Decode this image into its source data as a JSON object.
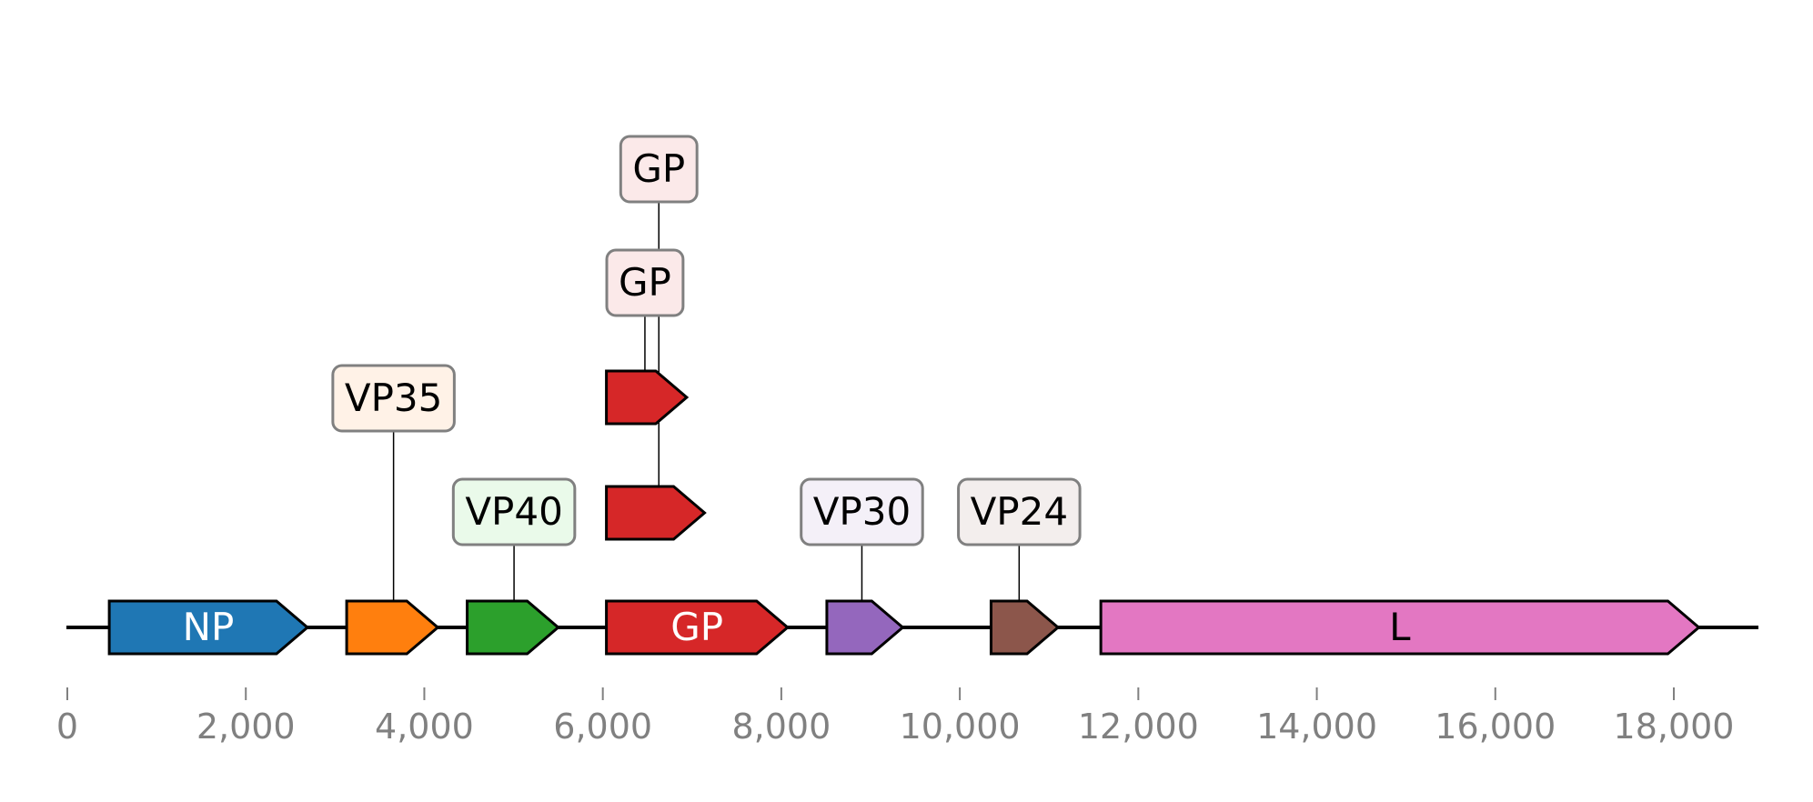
{
  "chart_data": {
    "type": "genome-map",
    "axis": {
      "min": 0,
      "max": 19000,
      "ticks": [
        0,
        2000,
        4000,
        6000,
        8000,
        10000,
        12000,
        14000,
        16000,
        18000
      ],
      "tick_labels": [
        "0",
        "2,000",
        "4,000",
        "6,000",
        "8,000",
        "10,000",
        "12,000",
        "14,000",
        "16,000",
        "18,000"
      ]
    },
    "features": [
      {
        "id": "np",
        "label": "NP",
        "start": 470,
        "end": 2690,
        "level": 0,
        "color": "#1f77b4",
        "label_inside": true,
        "label_color": "#ffffff"
      },
      {
        "id": "vp35",
        "label": "VP35",
        "start": 3130,
        "end": 4150,
        "level": 0,
        "color": "#ff7f0e",
        "label_inside": false,
        "label_level": 2,
        "box_fill": "#fff2e7"
      },
      {
        "id": "vp40",
        "label": "VP40",
        "start": 4480,
        "end": 5500,
        "level": 0,
        "color": "#2ca02c",
        "label_inside": false,
        "label_level": 1,
        "box_fill": "#eafaea"
      },
      {
        "id": "gp",
        "label": "GP",
        "start": 6040,
        "end": 8070,
        "level": 0,
        "color": "#d62728",
        "label_inside": true,
        "label_color": "#ffffff"
      },
      {
        "id": "gp_b",
        "label": "GP",
        "start": 6040,
        "end": 7140,
        "level": 1,
        "color": "#d62728",
        "label_inside": false,
        "label_level": 4,
        "box_fill": "#fbe9e9"
      },
      {
        "id": "gp_c",
        "label": "GP",
        "start": 6040,
        "end": 6940,
        "level": 2,
        "color": "#d62728",
        "label_inside": false,
        "label_level": 3,
        "box_fill": "#fbe9e9"
      },
      {
        "id": "vp30",
        "label": "VP30",
        "start": 8510,
        "end": 9360,
        "level": 0,
        "color": "#9467bd",
        "label_inside": false,
        "label_level": 1,
        "box_fill": "#f4f0f8"
      },
      {
        "id": "vp24",
        "label": "VP24",
        "start": 10350,
        "end": 11100,
        "level": 0,
        "color": "#8c564b",
        "label_inside": false,
        "label_level": 1,
        "box_fill": "#f3eeed"
      },
      {
        "id": "l",
        "label": "L",
        "start": 11580,
        "end": 18280,
        "level": 0,
        "color": "#e377c2",
        "label_inside": true,
        "label_color": "#000000"
      }
    ]
  }
}
